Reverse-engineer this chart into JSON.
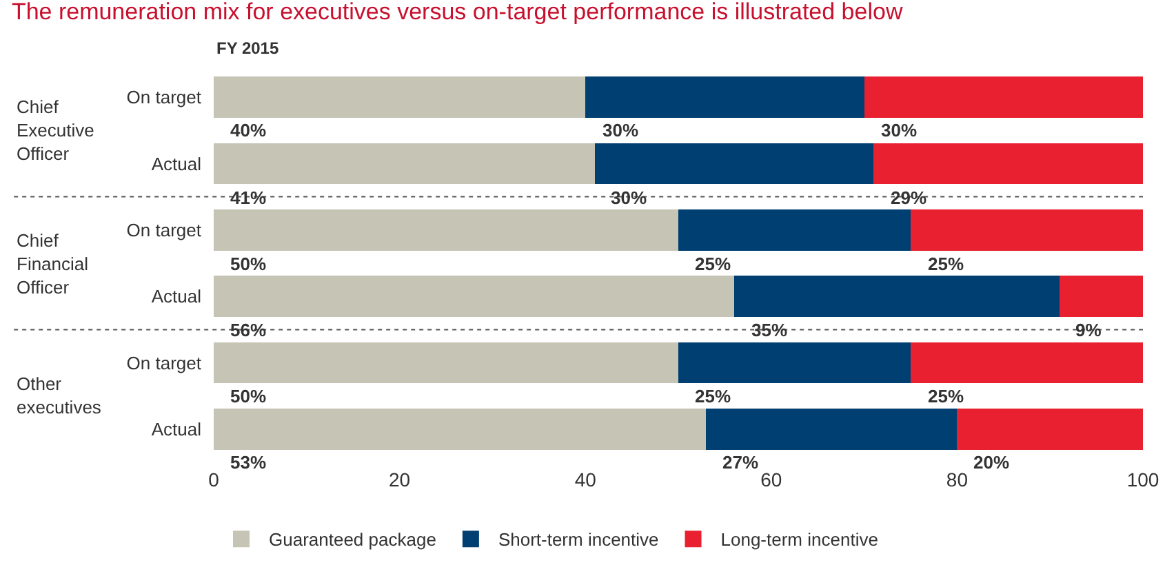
{
  "chart_data": {
    "type": "bar",
    "orientation": "horizontal",
    "stacked": true,
    "title": "The remuneration mix for executives versus on-target performance is illustrated below",
    "subtitle": "FY 2015",
    "categories": [
      "On target",
      "Actual",
      "On target",
      "Actual",
      "On target",
      "Actual"
    ],
    "series": [
      {
        "name": "Guaranteed package",
        "color": "#c5c4b5",
        "values": [
          40,
          41,
          50,
          56,
          50,
          53
        ],
        "value_labels": [
          "40%",
          "41%",
          "50%",
          "56%",
          "50%",
          "53%"
        ]
      },
      {
        "name": "Short-term incentive",
        "color": "#003f72",
        "values": [
          30,
          30,
          25,
          35,
          25,
          27
        ],
        "value_labels": [
          "30%",
          "30%",
          "25%",
          "35%",
          "25%",
          "27%"
        ]
      },
      {
        "name": "Long-term incentive",
        "color": "#e8202f",
        "values": [
          30,
          29,
          25,
          9,
          25,
          20
        ],
        "value_labels": [
          "30%",
          "29%",
          "25%",
          "9%",
          "25%",
          "20%"
        ]
      }
    ],
    "xlim": [
      0,
      100
    ],
    "xticks": [
      0,
      20,
      40,
      60,
      80,
      100
    ],
    "annotations": [
      "Chief\nExecutive\nOfficer",
      "Chief\nFinancial\nOfficer",
      "Other\nexecutives"
    ],
    "legend": "bottom",
    "grid": false
  }
}
